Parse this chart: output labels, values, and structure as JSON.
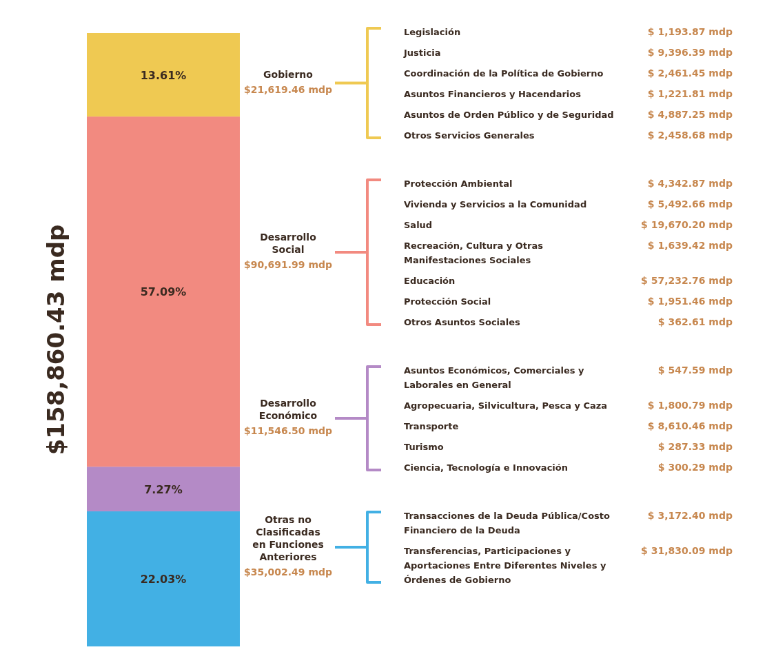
{
  "chart_data": [
    {
      "type": "bar",
      "title": "$158,860.43 mdp",
      "categories": [
        null
      ],
      "stacked": true,
      "ylim": [
        0,
        100
      ],
      "tick_labels": false,
      "series": [
        {
          "color": "#42b0e4",
          "values": [
            22.03
          ],
          "value_labels": [
            "22.03%"
          ]
        },
        {
          "color": "#b48ac6",
          "values": [
            7.27
          ],
          "value_labels": [
            "7.27%"
          ]
        },
        {
          "color": "#f28a80",
          "values": [
            57.09
          ],
          "value_labels": [
            "57.09%"
          ]
        },
        {
          "color": "#efc952",
          "values": [
            13.61
          ],
          "value_labels": [
            "13.61%"
          ]
        }
      ]
    },
    {
      "type": "other",
      "title": "Gobierno",
      "subtitle": "$21,619.46 mdp",
      "color": "#efc952",
      "categories": [
        "Legislación",
        "Justicia",
        "Coordinación de la Política de Gobierno",
        "Asuntos Financieros y Hacendarios",
        "Asuntos de Orden Público y de Seguridad",
        "Otros Servicios Generales"
      ],
      "value_labels": [
        "$ 1,193.87 mdp",
        "$ 9,396.39 mdp",
        "$ 2,461.45 mdp",
        "$ 1,221.81 mdp",
        "$ 4,887.25 mdp",
        "$ 2,458.68 mdp"
      ]
    },
    {
      "type": "other",
      "title": "Desarrollo Social",
      "subtitle": "$90,691.99 mdp",
      "color": "#f28a80",
      "categories": [
        "Protección Ambiental",
        "Vivienda y Servicios a la Comunidad",
        "Salud",
        "Recreación, Cultura y Otras Manifestaciones Sociales",
        "Educación",
        "Protección Social",
        "Otros Asuntos Sociales"
      ],
      "value_labels": [
        "$ 4,342.87 mdp",
        "$ 5,492.66 mdp",
        "$ 19,670.20 mdp",
        "$ 1,639.42 mdp",
        "$ 57,232.76 mdp",
        "$ 1,951.46 mdp",
        "$ 362.61 mdp"
      ]
    },
    {
      "type": "other",
      "title": "Desarrollo Económico",
      "subtitle": "$11,546.50 mdp",
      "color": "#b48ac6",
      "categories": [
        "Asuntos Económicos, Comerciales y Laborales en General",
        "Agropecuaria, Silvicultura, Pesca y Caza",
        "Transporte",
        "Turismo",
        "Ciencia, Tecnología e Innovación"
      ],
      "value_labels": [
        "$ 547.59 mdp",
        "$ 1,800.79 mdp",
        "$ 8,610.46 mdp",
        "$ 287.33 mdp",
        "$ 300.29 mdp"
      ]
    },
    {
      "type": "other",
      "title": "Otras no Clasificadas en Funciones Anteriores",
      "subtitle": "$35,002.49 mdp",
      "color": "#42b0e4",
      "categories": [
        "Transacciones de la Deuda Pública/Costo Financiero de la Deuda",
        "Transferencias, Participaciones y Aportaciones Entre Diferentes Niveles y Órdenes de Gobierno"
      ],
      "value_labels": [
        "$ 3,172.40 mdp",
        "$ 31,830.09 mdp"
      ]
    }
  ]
}
